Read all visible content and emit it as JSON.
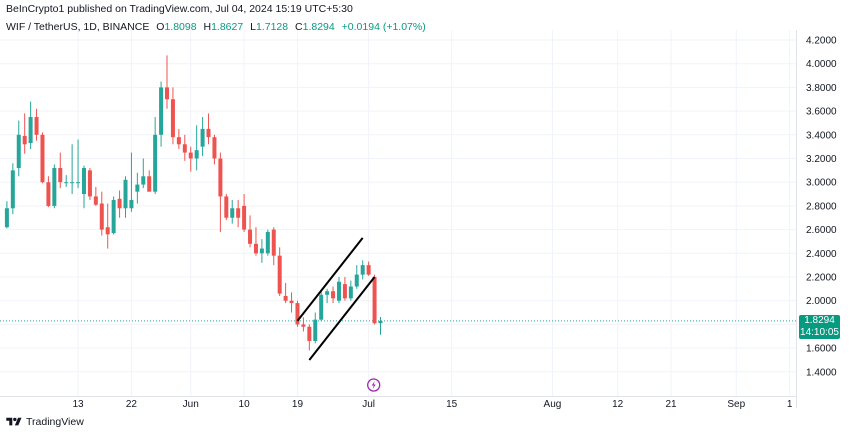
{
  "header": {
    "published": "BeInCrypto1 published on TradingView.com, Jul 04, 2024 15:19 UTC+5:30",
    "symbol": "WIF / TetherUS, 1D, BINANCE",
    "o_label": "O",
    "o_value": "1.8098",
    "h_label": "H",
    "h_value": "1.8627",
    "l_label": "L",
    "l_value": "1.7128",
    "c_label": "C",
    "c_value": "1.8294",
    "change": "+0.0194 (+1.07%)"
  },
  "footer": {
    "brand": "TradingView"
  },
  "price_tag": {
    "price": "1.8294",
    "countdown": "14:10:05"
  },
  "colors": {
    "up": "#26a69a",
    "down": "#ef5350",
    "last_price_line": "#26a69a",
    "channel": "#000000",
    "grid": "#f0f3fa"
  },
  "icons": {
    "event_marker": "lightning-icon",
    "logo": "tradingview-logo-icon"
  },
  "chart_data": {
    "type": "candlestick",
    "y_axis": {
      "position": "right",
      "ticks": [
        "4.2000",
        "4.0000",
        "3.8000",
        "3.6000",
        "3.4000",
        "3.2000",
        "3.0000",
        "2.8000",
        "2.6000",
        "2.4000",
        "2.2000",
        "2.0000",
        "1.8000",
        "1.6000",
        "1.4000"
      ],
      "range": [
        1.2,
        4.35
      ]
    },
    "x_axis": {
      "ticks": [
        "13",
        "22",
        "Jun",
        "10",
        "19",
        "Jul",
        "15",
        "Aug",
        "12",
        "21",
        "Sep",
        "1"
      ],
      "tick_days": [
        13,
        22,
        32,
        41,
        50,
        62,
        76,
        93,
        104,
        113,
        124,
        133
      ],
      "day_index_note": "days since Apr 30, 2024"
    },
    "candles": [
      {
        "day": 1,
        "o": 2.62,
        "h": 2.84,
        "l": 2.61,
        "c": 2.78
      },
      {
        "day": 2,
        "o": 2.78,
        "h": 3.16,
        "l": 2.73,
        "c": 3.1
      },
      {
        "day": 3,
        "o": 3.12,
        "h": 3.52,
        "l": 3.05,
        "c": 3.4
      },
      {
        "day": 4,
        "o": 3.39,
        "h": 3.58,
        "l": 3.24,
        "c": 3.32
      },
      {
        "day": 5,
        "o": 3.33,
        "h": 3.68,
        "l": 3.28,
        "c": 3.55
      },
      {
        "day": 6,
        "o": 3.55,
        "h": 3.62,
        "l": 3.35,
        "c": 3.4
      },
      {
        "day": 7,
        "o": 3.4,
        "h": 3.42,
        "l": 2.99,
        "c": 3.0
      },
      {
        "day": 8,
        "o": 3.0,
        "h": 3.05,
        "l": 2.79,
        "c": 2.8
      },
      {
        "day": 9,
        "o": 2.8,
        "h": 3.15,
        "l": 2.78,
        "c": 3.12
      },
      {
        "day": 10,
        "o": 3.12,
        "h": 3.25,
        "l": 2.95,
        "c": 3.0
      },
      {
        "day": 11,
        "o": 3.0,
        "h": 3.06,
        "l": 2.96,
        "c": 3.0
      },
      {
        "day": 12,
        "o": 3.0,
        "h": 3.32,
        "l": 2.9,
        "c": 3.0
      },
      {
        "day": 13,
        "o": 3.0,
        "h": 3.36,
        "l": 2.95,
        "c": 3.0
      },
      {
        "day": 14,
        "o": 2.9,
        "h": 3.14,
        "l": 2.78,
        "c": 3.12
      },
      {
        "day": 15,
        "o": 3.1,
        "h": 3.12,
        "l": 2.85,
        "c": 2.88
      },
      {
        "day": 16,
        "o": 2.88,
        "h": 2.96,
        "l": 2.8,
        "c": 2.81
      },
      {
        "day": 17,
        "o": 2.82,
        "h": 2.92,
        "l": 2.55,
        "c": 2.6
      },
      {
        "day": 18,
        "o": 2.62,
        "h": 2.82,
        "l": 2.44,
        "c": 2.56
      },
      {
        "day": 19,
        "o": 2.57,
        "h": 2.88,
        "l": 2.56,
        "c": 2.85
      },
      {
        "day": 20,
        "o": 2.86,
        "h": 2.93,
        "l": 2.7,
        "c": 2.78
      },
      {
        "day": 21,
        "o": 2.78,
        "h": 3.05,
        "l": 2.7,
        "c": 3.02
      },
      {
        "day": 22,
        "o": 2.78,
        "h": 3.25,
        "l": 2.75,
        "c": 2.85
      },
      {
        "day": 23,
        "o": 2.92,
        "h": 3.08,
        "l": 2.82,
        "c": 2.98
      },
      {
        "day": 24,
        "o": 2.98,
        "h": 3.2,
        "l": 2.95,
        "c": 3.05
      },
      {
        "day": 25,
        "o": 3.05,
        "h": 3.1,
        "l": 2.92,
        "c": 2.92
      },
      {
        "day": 26,
        "o": 2.92,
        "h": 3.55,
        "l": 2.9,
        "c": 3.4
      },
      {
        "day": 27,
        "o": 3.4,
        "h": 3.85,
        "l": 3.3,
        "c": 3.8
      },
      {
        "day": 28,
        "o": 3.8,
        "h": 4.07,
        "l": 3.62,
        "c": 3.7
      },
      {
        "day": 29,
        "o": 3.7,
        "h": 3.8,
        "l": 3.32,
        "c": 3.38
      },
      {
        "day": 30,
        "o": 3.38,
        "h": 3.45,
        "l": 3.28,
        "c": 3.32
      },
      {
        "day": 31,
        "o": 3.32,
        "h": 3.4,
        "l": 3.18,
        "c": 3.25
      },
      {
        "day": 32,
        "o": 3.25,
        "h": 3.3,
        "l": 3.09,
        "c": 3.2
      },
      {
        "day": 33,
        "o": 3.2,
        "h": 3.48,
        "l": 3.1,
        "c": 3.27
      },
      {
        "day": 34,
        "o": 3.3,
        "h": 3.55,
        "l": 3.22,
        "c": 3.45
      },
      {
        "day": 35,
        "o": 3.45,
        "h": 3.58,
        "l": 3.32,
        "c": 3.38
      },
      {
        "day": 36,
        "o": 3.38,
        "h": 3.4,
        "l": 3.15,
        "c": 3.2
      },
      {
        "day": 37,
        "o": 3.2,
        "h": 3.25,
        "l": 2.58,
        "c": 2.88
      },
      {
        "day": 38,
        "o": 2.88,
        "h": 2.9,
        "l": 2.68,
        "c": 2.7
      },
      {
        "day": 39,
        "o": 2.7,
        "h": 2.85,
        "l": 2.65,
        "c": 2.78
      },
      {
        "day": 40,
        "o": 2.78,
        "h": 2.85,
        "l": 2.62,
        "c": 2.7
      },
      {
        "day": 41,
        "o": 2.8,
        "h": 2.9,
        "l": 2.58,
        "c": 2.6
      },
      {
        "day": 42,
        "o": 2.6,
        "h": 2.72,
        "l": 2.45,
        "c": 2.48
      },
      {
        "day": 43,
        "o": 2.48,
        "h": 2.62,
        "l": 2.38,
        "c": 2.4
      },
      {
        "day": 44,
        "o": 2.4,
        "h": 2.52,
        "l": 2.32,
        "c": 2.44
      },
      {
        "day": 45,
        "o": 2.4,
        "h": 2.6,
        "l": 2.38,
        "c": 2.58
      },
      {
        "day": 46,
        "o": 2.6,
        "h": 2.62,
        "l": 2.3,
        "c": 2.38
      },
      {
        "day": 47,
        "o": 2.38,
        "h": 2.45,
        "l": 2.04,
        "c": 2.06
      },
      {
        "day": 48,
        "o": 2.04,
        "h": 2.15,
        "l": 1.98,
        "c": 2.0
      },
      {
        "day": 49,
        "o": 2.0,
        "h": 2.07,
        "l": 1.9,
        "c": 1.98
      },
      {
        "day": 50,
        "o": 1.98,
        "h": 2.0,
        "l": 1.78,
        "c": 1.8
      },
      {
        "day": 51,
        "o": 1.8,
        "h": 1.86,
        "l": 1.74,
        "c": 1.78
      },
      {
        "day": 52,
        "o": 1.78,
        "h": 1.8,
        "l": 1.58,
        "c": 1.66
      },
      {
        "day": 53,
        "o": 1.66,
        "h": 1.9,
        "l": 1.64,
        "c": 1.84
      },
      {
        "day": 54,
        "o": 1.84,
        "h": 2.08,
        "l": 1.83,
        "c": 2.05
      },
      {
        "day": 55,
        "o": 2.05,
        "h": 2.1,
        "l": 1.98,
        "c": 2.08
      },
      {
        "day": 56,
        "o": 2.08,
        "h": 2.12,
        "l": 1.98,
        "c": 2.02
      },
      {
        "day": 57,
        "o": 2.0,
        "h": 2.2,
        "l": 1.98,
        "c": 2.16
      },
      {
        "day": 58,
        "o": 2.14,
        "h": 2.2,
        "l": 2.0,
        "c": 2.02
      },
      {
        "day": 59,
        "o": 2.02,
        "h": 2.17,
        "l": 2.0,
        "c": 2.12
      },
      {
        "day": 60,
        "o": 2.12,
        "h": 2.3,
        "l": 2.1,
        "c": 2.22
      },
      {
        "day": 61,
        "o": 2.22,
        "h": 2.34,
        "l": 2.18,
        "c": 2.3
      },
      {
        "day": 62,
        "o": 2.3,
        "h": 2.33,
        "l": 2.21,
        "c": 2.22
      },
      {
        "day": 63,
        "o": 2.2,
        "h": 2.22,
        "l": 1.8,
        "c": 1.81
      },
      {
        "day": 64,
        "o": 1.8098,
        "h": 1.8627,
        "l": 1.7128,
        "c": 1.8294
      }
    ],
    "channel_lines": [
      {
        "from": {
          "day": 50,
          "price": 1.83
        },
        "to": {
          "day": 61,
          "price": 2.53
        }
      },
      {
        "from": {
          "day": 52,
          "price": 1.5
        },
        "to": {
          "day": 63,
          "price": 2.2
        }
      }
    ],
    "last_price": 1.8294,
    "event_marker_day": 61
  }
}
